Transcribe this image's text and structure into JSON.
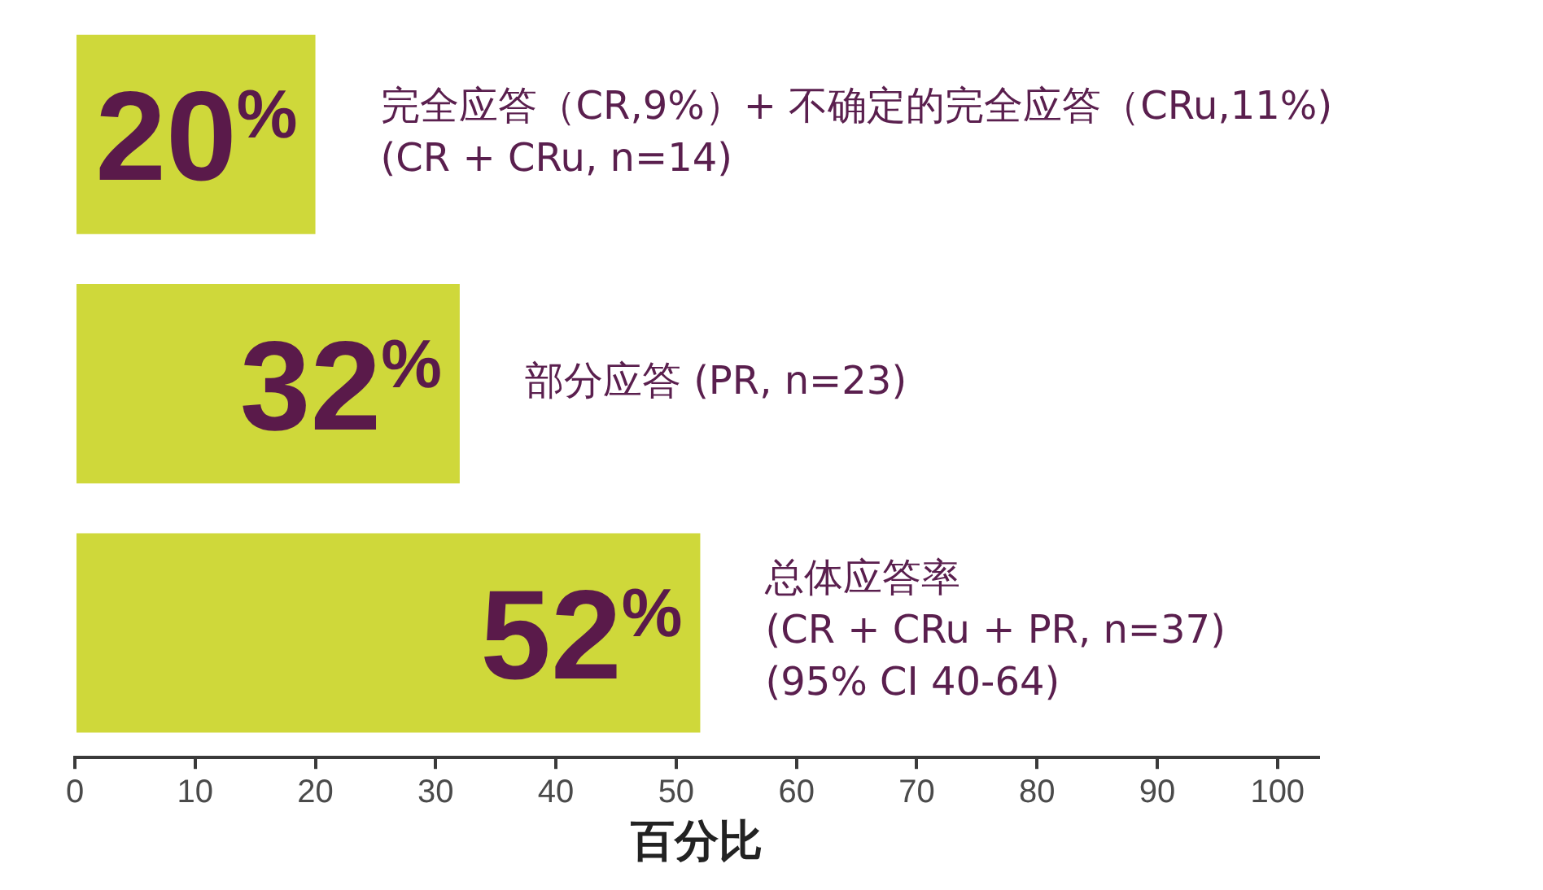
{
  "chart_data": {
    "type": "bar",
    "orientation": "horizontal",
    "xlabel": "百分比",
    "categories": [
      "完全应答（CR,9%）+ 不确定的完全应答（CRu,11%)\n(CR + CRu, n=14)",
      "部分应答 (PR, n=23)",
      "总体应答率\n(CR + CRu + PR, n=37)\n(95% CI 40-64)"
    ],
    "values": [
      20,
      32,
      52
    ],
    "color": "#cfd83a",
    "value_labels": [
      "20$^{%}$",
      "32$^{%}$",
      "52$^{%}$"
    ],
    "xlim": [
      0,
      103.4
    ],
    "xticks": [
      0,
      10,
      20,
      30,
      40,
      50,
      60,
      70,
      80,
      90,
      100
    ],
    "grid": false,
    "legend": false
  }
}
